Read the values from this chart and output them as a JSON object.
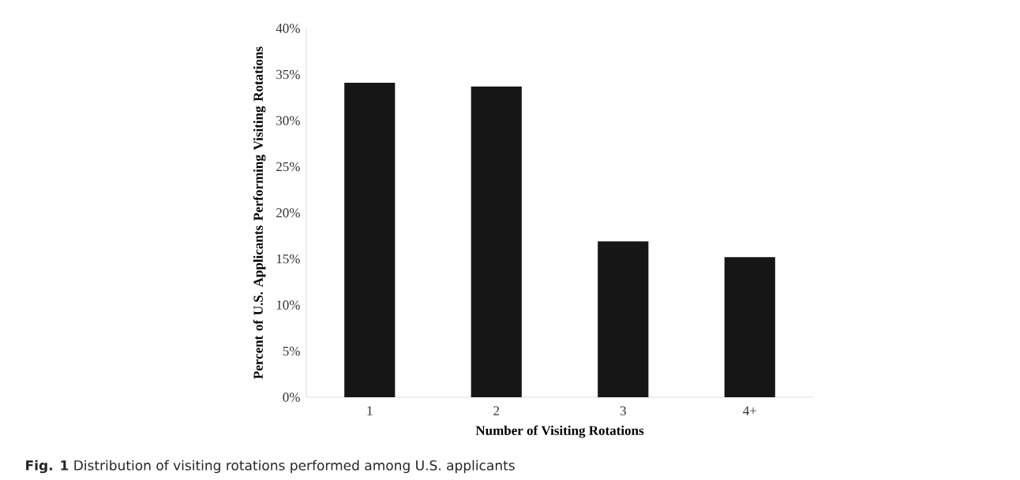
{
  "chart_data": {
    "type": "bar",
    "categories": [
      "1",
      "2",
      "3",
      "4+"
    ],
    "values": [
      34.1,
      33.7,
      16.9,
      15.2
    ],
    "color": "#161616",
    "xlabel": "Number of Visiting Rotations",
    "ylabel": "Percent of U.S. Applicants Performing Visiting Rotations",
    "ylim": [
      0,
      40
    ],
    "yticks": [
      {
        "value": 0,
        "label": "0%"
      },
      {
        "value": 5,
        "label": "5%"
      },
      {
        "value": 10,
        "label": "10%"
      },
      {
        "value": 15,
        "label": "15%"
      },
      {
        "value": 20,
        "label": "20%"
      },
      {
        "value": 25,
        "label": "25%"
      },
      {
        "value": 30,
        "label": "30%"
      },
      {
        "value": 35,
        "label": "35%"
      },
      {
        "value": 40,
        "label": "40%"
      }
    ],
    "grid": false,
    "annotations": [
      "**Fig. 1** Distribution of visiting rotations performed among U.S. applicants"
    ]
  }
}
